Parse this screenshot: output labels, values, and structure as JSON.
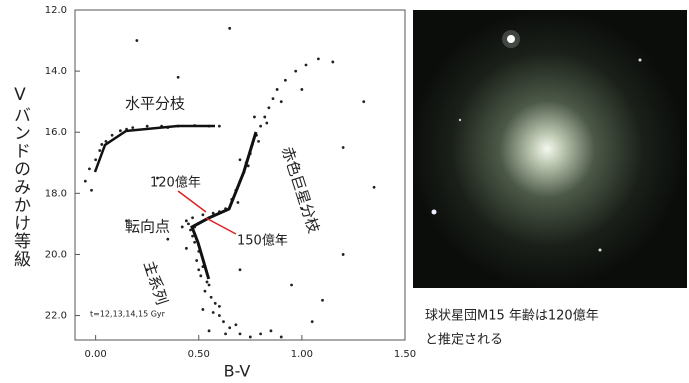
{
  "chart_data": {
    "type": "scatter",
    "y_label": "Vバンドのみかけ等級",
    "x_label": "B-V",
    "xlim": [
      -0.1,
      1.5
    ],
    "ylim": [
      12,
      22.8
    ],
    "y_inverted": true,
    "xticks": [
      {
        "value": 0,
        "label": "0.00"
      },
      {
        "value": 0.5,
        "label": "0.50"
      },
      {
        "value": 1,
        "label": "1.00"
      },
      {
        "value": 1.5,
        "label": "1.50"
      }
    ],
    "yticks": [
      {
        "value": 12,
        "label": "12.0"
      },
      {
        "value": 14,
        "label": "14.0"
      },
      {
        "value": 16,
        "label": "16.0"
      },
      {
        "value": 18,
        "label": "18.0"
      },
      {
        "value": 20,
        "label": "20.0"
      },
      {
        "value": 22,
        "label": "22.0"
      }
    ],
    "color": "#222222",
    "x": [
      0.48,
      0.5,
      0.49,
      0.52,
      0.51,
      0.54,
      0.53,
      0.56,
      0.58,
      0.57,
      0.6,
      0.62,
      0.65,
      0.7,
      0.75,
      0.8,
      0.55,
      0.47,
      0.46,
      0.5,
      0.55,
      0.6,
      0.68,
      0.85,
      0.9,
      0.52,
      0.63,
      0.44,
      0.45,
      0.44,
      0.47,
      0.52,
      0.57,
      0.6,
      0.63,
      0.48,
      0.42,
      0.66,
      0.68,
      0.7,
      0.72,
      0.73,
      0.75,
      0.76,
      0.78,
      0.8,
      0.82,
      0.84,
      0.86,
      0.88,
      0.92,
      0.97,
      1.02,
      1.08,
      0.74,
      0.79,
      0.83,
      0.7,
      0.9,
      0.77,
      0.69,
      1.15,
      -0.05,
      -0.03,
      0.0,
      0.02,
      0.05,
      0.08,
      0.12,
      0.18,
      0.25,
      0.32,
      0.4,
      0.48,
      0.55,
      0.6,
      0.35,
      0.15,
      -0.02,
      0.03,
      0.2,
      0.65,
      1.0,
      1.2,
      1.35,
      0.3,
      0.25,
      0.35,
      1.0,
      1.2,
      0.9,
      1.1,
      0.15,
      0.4,
      1.3,
      0.7,
      1.05,
      0.95
    ],
    "values": [
      19.6,
      19.9,
      20.2,
      20.4,
      20.7,
      20.9,
      21.2,
      21.4,
      21.6,
      21.9,
      22.0,
      22.2,
      22.4,
      22.6,
      22.7,
      22.6,
      22.5,
      19.4,
      19.2,
      20.5,
      21.0,
      21.7,
      22.3,
      22.5,
      22.7,
      21.8,
      22.6,
      19.8,
      19.0,
      18.9,
      18.8,
      18.7,
      18.65,
      18.6,
      18.5,
      19.1,
      19.1,
      18.2,
      17.9,
      17.6,
      17.3,
      17.0,
      16.7,
      16.4,
      16.1,
      15.8,
      15.5,
      15.2,
      14.9,
      14.6,
      14.3,
      14.0,
      13.8,
      13.6,
      17.1,
      16.3,
      15.7,
      16.9,
      15.0,
      15.5,
      18.3,
      13.7,
      17.6,
      17.2,
      16.9,
      16.6,
      16.3,
      16.1,
      15.95,
      15.85,
      15.8,
      15.8,
      15.8,
      15.78,
      15.8,
      15.8,
      15.85,
      15.9,
      17.9,
      16.4,
      13.0,
      12.6,
      14.6,
      16.5,
      17.8,
      17.5,
      20.5,
      19.5,
      18.5,
      20.0,
      19.5,
      21.5,
      18.9,
      14.2,
      15.0,
      20.5,
      22.2,
      21.0
    ],
    "annotations": [
      "水平分枝",
      "赤色巨星分枝",
      "120億年",
      "150億年",
      "転向点",
      "主系列",
      "t=12,13,14,15 Gyr"
    ]
  },
  "caption_lines": [
    "球状星団M15 年齢は120億年",
    "と推定される"
  ]
}
